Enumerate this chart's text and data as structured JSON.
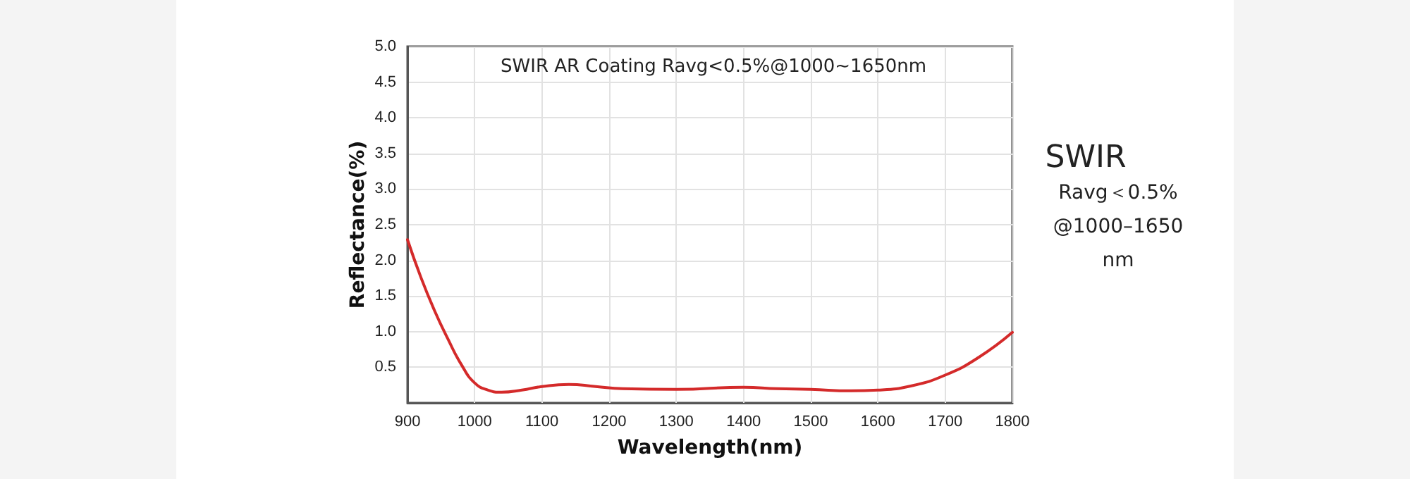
{
  "chart_data": {
    "type": "line",
    "title": "SWIR AR Coating Ravg<0.5%@1000~1650nm",
    "xlabel": "Wavelength(nm)",
    "ylabel": "Reflectance(%)",
    "annotations": [
      "SWIR",
      "Ravg＜0.5%",
      "@1000–1650",
      "nm"
    ],
    "series": [
      {
        "color": "#d42a2a",
        "x": [
          900,
          920,
          940,
          960,
          980,
          1000,
          1020,
          1040,
          1070,
          1100,
          1140,
          1180,
          1220,
          1300,
          1400,
          1450,
          1500,
          1560,
          1600,
          1650,
          1700,
          1750,
          1800
        ],
        "values": [
          2.29,
          1.76,
          1.3,
          0.9,
          0.54,
          0.28,
          0.18,
          0.15,
          0.18,
          0.23,
          0.26,
          0.23,
          0.2,
          0.19,
          0.22,
          0.2,
          0.19,
          0.17,
          0.18,
          0.24,
          0.39,
          0.64,
          0.99
        ]
      }
    ],
    "xlim": [
      900,
      1800
    ],
    "xticks": [
      900,
      1000,
      1100,
      1200,
      1300,
      1400,
      1500,
      1600,
      1700,
      1800
    ],
    "ylim": [
      0,
      5
    ],
    "yticks": [
      {
        "value": 0,
        "label": null
      },
      0.5,
      {
        "value": 1,
        "label": "1.0"
      },
      1.5,
      {
        "value": 2,
        "label": "2.0"
      },
      2.5,
      {
        "value": 3,
        "label": "3.0"
      },
      3.5,
      {
        "value": 4,
        "label": "4.0"
      },
      4.5,
      {
        "value": 5,
        "label": "5.0"
      }
    ],
    "grid": true,
    "marker": "none",
    "line_style": "solid"
  }
}
